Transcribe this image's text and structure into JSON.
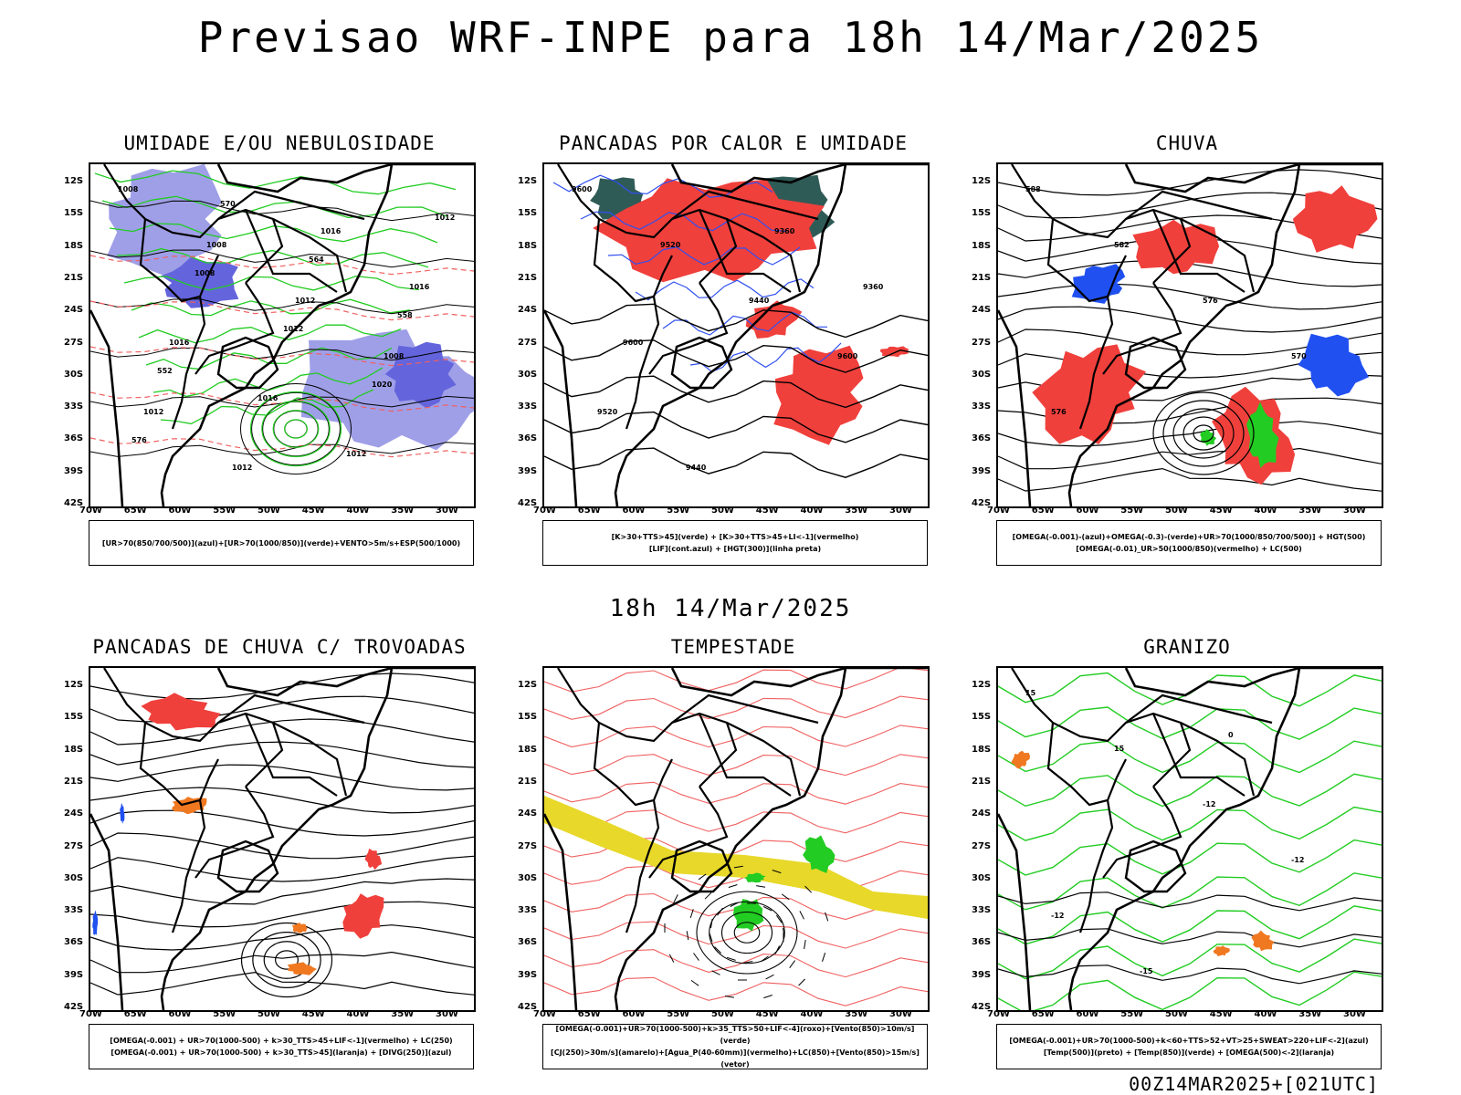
{
  "title": "Previsao WRF-INPE  para 18h 14/Mar/2025",
  "mid_title": "18h 14/Mar/2025",
  "footer": "00Z14MAR2025+[021UTC]",
  "lat_ticks": [
    "12S",
    "15S",
    "18S",
    "21S",
    "24S",
    "27S",
    "30S",
    "33S",
    "36S",
    "39S",
    "42S"
  ],
  "lon_ticks": [
    "70W",
    "65W",
    "60W",
    "55W",
    "50W",
    "45W",
    "40W",
    "35W",
    "30W"
  ],
  "panels": [
    {
      "title": "UMIDADE E/OU NEBULOSIDADE",
      "legend": [
        "[UR>70(850/700/500)](azul)+[UR>70(1000/850)](verde)+VENTO>5m/s+ESP(500/1000)"
      ],
      "contour_labels": [
        "1008",
        "1008",
        "1012",
        "1008",
        "1012",
        "1012",
        "1016",
        "1016",
        "1016",
        "1016",
        "1012",
        "1012",
        "1008",
        "1012",
        "1020",
        "576",
        "570",
        "564",
        "558",
        "552"
      ]
    },
    {
      "title": "PANCADAS POR CALOR E UMIDADE",
      "legend": [
        "[K>30+TTS>45](verde) + [K>30+TTS>45+LI<-1](vermelho)",
        "[LIF](cont.azul) + [HGT(300)](linha preta)"
      ],
      "contour_labels": [
        "9600",
        "9520",
        "9440",
        "9600",
        "9520",
        "9440",
        "9360",
        "9360",
        "9600"
      ]
    },
    {
      "title": "CHUVA",
      "legend": [
        "[OMEGA(-0.001)-(azul)+OMEGA(-0.3)-(verde)+UR>70(1000/850/700/500)] + HGT(500)",
        "[OMEGA(-0.01)_UR>50(1000/850)(vermelho) + LC(500)"
      ],
      "contour_labels": [
        "588",
        "582",
        "576",
        "570",
        "576"
      ]
    },
    {
      "title": "PANCADAS DE CHUVA C/ TROVOADAS",
      "legend": [
        "[OMEGA(-0.001) + UR>70(1000-500) + k>30_TTS>45+LIF<-1](vermelho) + LC(250)",
        "[OMEGA(-0.001) + UR>70(1000-500) + k>30_TTS>45](laranja) + [DIVG(250)](azul)"
      ],
      "contour_labels": []
    },
    {
      "title": "TEMPESTADE",
      "legend": [
        "[OMEGA(-0.001)+UR>70(1000-500)+k>35_TTS>50+LIF<-4](roxo)+[Vento(850)>10m/s](verde)",
        "[CJ(250)>30m/s](amarelo)+[Agua_P(40-60mm)](vermelho)+LC(850)+[Vento(850)>15m/s](vetor)"
      ],
      "contour_labels": []
    },
    {
      "title": "GRANIZO",
      "legend": [
        "[OMEGA(-0.001)+UR>70(1000-500)+k<60+TTS>52+VT>25+SWEAT>220+LIF<-2](azul)",
        "[Temp(500)](preto) + [Temp(850)](verde) + [OMEGA(500)<-2](laranja)"
      ],
      "contour_labels": [
        "15",
        "15",
        "-12",
        "-12",
        "-12",
        "-15",
        "0"
      ]
    }
  ],
  "colors": {
    "blue_fill": "#9f9fe8",
    "dark_blue_fill": "#6464dc",
    "green_line": "#22cc22",
    "red_fill": "#f0403c",
    "dark_teal": "#2f5b57",
    "yellow_fill": "#e8d82a",
    "orange": "#f07820",
    "contour_red": "#f06060"
  }
}
